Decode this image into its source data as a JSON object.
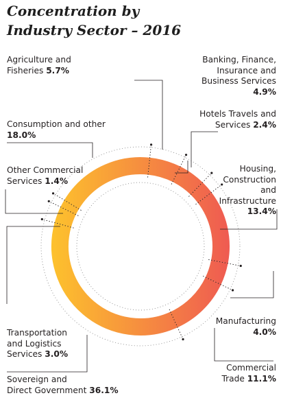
{
  "title_line1": "Concentration by",
  "title_line2": "Industry Sector – 2016",
  "colors": {
    "gradient_start": "#fdc12d",
    "gradient_end": "#ef5c51",
    "line": "#231f20",
    "dots": "#8a8a8a"
  },
  "chart_data": {
    "type": "donut",
    "title": "Concentration by Industry Sector – 2016",
    "unit": "%",
    "slices": [
      {
        "name": "Agriculture and Fisheries",
        "value": 5.7,
        "label": "5.7%"
      },
      {
        "name": "Banking, Finance, Insurance and Business Services",
        "value": 4.9,
        "label": "4.9%"
      },
      {
        "name": "Hotels Travels and Services",
        "value": 2.4,
        "label": "2.4%"
      },
      {
        "name": "Housing, Construction and Infrastructure",
        "value": 13.4,
        "label": "13.4%"
      },
      {
        "name": "Manufacturing",
        "value": 4.0,
        "label": "4.0%"
      },
      {
        "name": "Commercial Trade",
        "value": 11.1,
        "label": "11.1%"
      },
      {
        "name": "Sovereign and Direct Government",
        "value": 36.1,
        "label": "36.1%"
      },
      {
        "name": "Transportation and Logistics Services",
        "value": 3.0,
        "label": "3.0%"
      },
      {
        "name": "Other Commercial Services",
        "value": 1.4,
        "label": "1.4%"
      },
      {
        "name": "Consumption and other",
        "value": 18.0,
        "label": "18.0%"
      }
    ]
  }
}
